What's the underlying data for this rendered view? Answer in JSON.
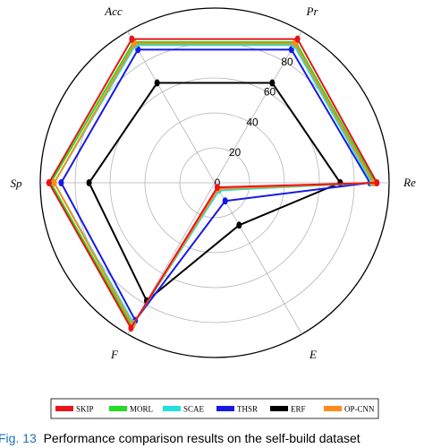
{
  "caption": {
    "figure_label": "Fig. 13",
    "text": "Performance comparison results on the self-build dataset"
  },
  "chart_data": {
    "type": "radar",
    "axes": [
      "Acc",
      "Pr",
      "Re",
      "E",
      "F",
      "Sp"
    ],
    "tick_values": [
      0,
      20,
      40,
      60,
      80
    ],
    "r_max": 100,
    "grid": true,
    "legend_position": "bottom",
    "series": [
      {
        "name": "SKIP",
        "color": "#e8141b",
        "values": [
          95,
          95,
          93,
          3,
          96,
          95
        ]
      },
      {
        "name": "MORL",
        "color": "#22dd22",
        "values": [
          93,
          93,
          92,
          4,
          95,
          94
        ]
      },
      {
        "name": "SCAE",
        "color": "#22e0e0",
        "values": [
          91,
          91,
          90,
          5,
          93,
          92
        ]
      },
      {
        "name": "THSR",
        "color": "#1919e6",
        "values": [
          88,
          88,
          89,
          12,
          91,
          88
        ]
      },
      {
        "name": "ERF",
        "color": "#000000",
        "values": [
          66,
          66,
          72,
          28,
          78,
          72
        ]
      },
      {
        "name": "OP-CNN",
        "color": "#ff8c1a",
        "values": [
          92,
          92,
          91,
          4,
          94,
          92
        ]
      }
    ]
  }
}
